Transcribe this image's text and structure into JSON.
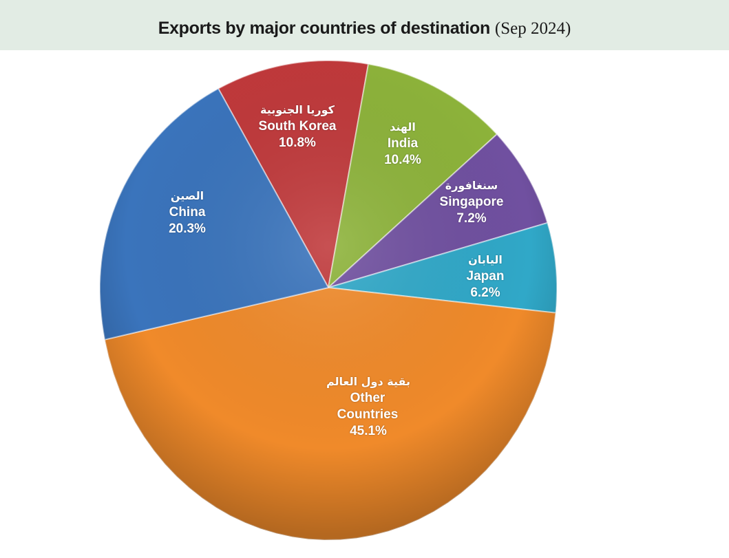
{
  "chart_data": {
    "type": "pie",
    "title": "Exports by major countries of destination",
    "subtitle": "(Sep 2024)",
    "slices": [
      {
        "label": "South Korea",
        "label_ar": "كوريا الجنوبية",
        "value": 10.8,
        "value_label": "10.8%",
        "color": "#c0393b"
      },
      {
        "label": "India",
        "label_ar": "الهند",
        "value": 10.4,
        "value_label": "10.4%",
        "color": "#8db33a"
      },
      {
        "label": "Singapore",
        "label_ar": "سنغافورة",
        "value": 7.2,
        "value_label": "7.2%",
        "color": "#7050a0"
      },
      {
        "label": "Japan",
        "label_ar": "اليابان",
        "value": 6.2,
        "value_label": "6.2%",
        "color": "#30a8c8"
      },
      {
        "label": "Other Countries",
        "label_ar": "بقية دول العالم",
        "value": 45.1,
        "value_label": "45.1%",
        "color": "#f08a2a"
      },
      {
        "label": "China",
        "label_ar": "الصين",
        "value": 20.3,
        "value_label": "20.3%",
        "color": "#3a74bc"
      }
    ],
    "legend": "none"
  }
}
